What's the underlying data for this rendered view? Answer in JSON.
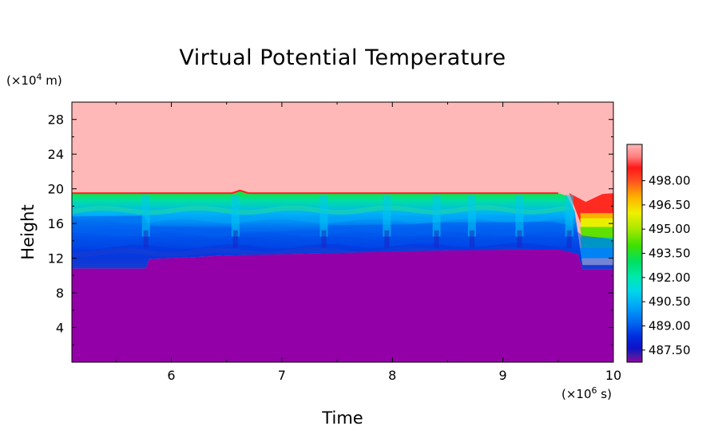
{
  "chart_data": {
    "type": "heatmap",
    "title": "Virtual Potential Temperature",
    "xlabel": "Time",
    "ylabel": "Height",
    "x_unit_prefix": "(×10",
    "x_unit_exp": "6",
    "x_unit_suffix": " s)",
    "y_unit_prefix": "(×10",
    "y_unit_exp": "4",
    "y_unit_suffix": " m)",
    "xlim": [
      5.1,
      10
    ],
    "ylim": [
      0,
      30
    ],
    "x_ticks": [
      6,
      7,
      8,
      9,
      10
    ],
    "y_ticks": [
      4,
      8,
      12,
      16,
      20,
      24,
      28
    ],
    "colorbar_range": [
      486.75,
      500.25
    ],
    "colorbar_labels": [
      "498.00",
      "496.50",
      "495.00",
      "493.50",
      "492.00",
      "490.50",
      "489.00",
      "487.50"
    ],
    "colorbar_label_values": [
      498.0,
      496.5,
      495.0,
      493.5,
      492.0,
      490.5,
      489.0,
      487.5
    ],
    "colorbar_stops": [
      {
        "v": 486.75,
        "color": "#9400a8"
      },
      {
        "v": 487.2,
        "color": "#3c1ca8"
      },
      {
        "v": 487.6,
        "color": "#1010c8"
      },
      {
        "v": 488.4,
        "color": "#0030e0"
      },
      {
        "v": 489.2,
        "color": "#0068f0"
      },
      {
        "v": 490.2,
        "color": "#00a4f8"
      },
      {
        "v": 491.2,
        "color": "#00d8e8"
      },
      {
        "v": 492.0,
        "color": "#00e8b0"
      },
      {
        "v": 493.0,
        "color": "#00e060"
      },
      {
        "v": 494.0,
        "color": "#40e000"
      },
      {
        "v": 495.0,
        "color": "#a8e800"
      },
      {
        "v": 496.0,
        "color": "#f0f000"
      },
      {
        "v": 497.0,
        "color": "#ffb000"
      },
      {
        "v": 498.0,
        "color": "#ff5020"
      },
      {
        "v": 498.8,
        "color": "#ff1818"
      },
      {
        "v": 499.5,
        "color": "#ff8080"
      },
      {
        "v": 500.25,
        "color": "#ffb8b8"
      }
    ],
    "regions": [
      {
        "name": "upper-region",
        "color": "#ffb8b8",
        "approx_value": 500.0
      },
      {
        "name": "lower-region",
        "color": "#9400a8",
        "approx_value": 486.8
      }
    ],
    "layer": {
      "top": [
        [
          5.1,
          19.5
        ],
        [
          6.55,
          19.5
        ],
        [
          6.62,
          19.8
        ],
        [
          6.7,
          19.5
        ],
        [
          9.5,
          19.5
        ],
        [
          9.58,
          19.2
        ],
        [
          9.65,
          17.4
        ],
        [
          9.72,
          11.2
        ],
        [
          10.0,
          11.2
        ]
      ],
      "cap_top": [
        [
          9.6,
          19.5
        ],
        [
          9.75,
          18.5
        ],
        [
          9.9,
          19.4
        ],
        [
          10.0,
          19.5
        ]
      ],
      "band_boundaries": [
        {
          "level": 17.5,
          "color": "#20d8a0"
        },
        {
          "level": 16.5,
          "color": "#00a8f8"
        },
        {
          "level": 15.0,
          "color": "#0070f0"
        },
        {
          "level": 13.8,
          "color": "#0040e0"
        },
        {
          "level": 13.0,
          "color": "#1010c8"
        },
        {
          "level": 12.6,
          "color": "#3c1ca8"
        }
      ],
      "bottom": [
        [
          5.1,
          10.8
        ],
        [
          5.77,
          10.8
        ],
        [
          5.8,
          11.9
        ],
        [
          6.5,
          12.3
        ],
        [
          7.5,
          12.6
        ],
        [
          8.5,
          12.9
        ],
        [
          9.5,
          13.0
        ],
        [
          9.68,
          12.5
        ],
        [
          9.72,
          10.7
        ],
        [
          10.0,
          10.7
        ]
      ],
      "mixed_top": [
        [
          5.1,
          16.8
        ],
        [
          5.75,
          16.9
        ],
        [
          5.8,
          15.7
        ],
        [
          6.55,
          15.6
        ],
        [
          6.6,
          15.0
        ],
        [
          7.35,
          15.2
        ],
        [
          7.45,
          15.8
        ],
        [
          8.2,
          15.9
        ],
        [
          8.35,
          16.1
        ],
        [
          9.45,
          16.2
        ],
        [
          9.6,
          15.8
        ],
        [
          9.72,
          14.6
        ],
        [
          10.0,
          14.2
        ]
      ],
      "pulses": [
        5.77,
        6.58,
        7.38,
        7.95,
        8.4,
        8.72,
        9.15,
        9.6
      ]
    }
  }
}
